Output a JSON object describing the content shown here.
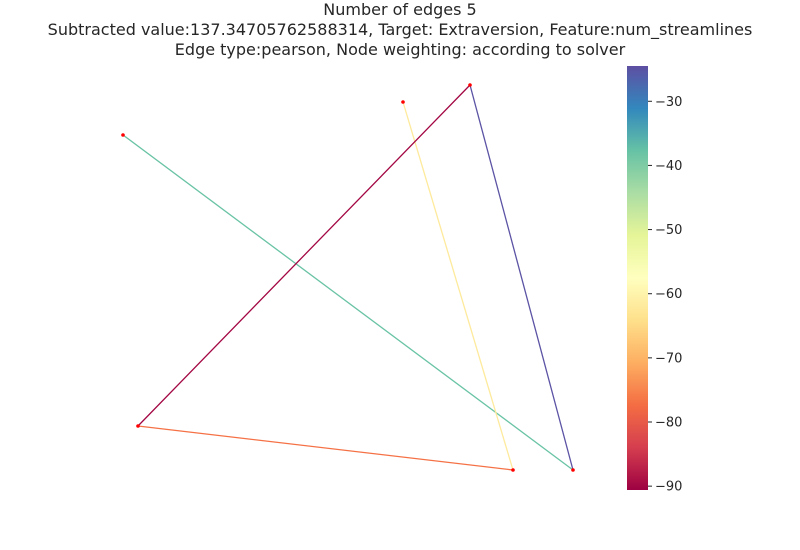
{
  "title": {
    "line1": "Number of edges 5",
    "line2": "Subtracted value:137.34705762588314, Target: Extraversion, Feature:num_streamlines",
    "line3": "Edge type:pearson, Node weighting: according to solver"
  },
  "colorbar": {
    "min": -90.6,
    "max": -24.5,
    "ticks": [
      -30,
      -40,
      -50,
      -60,
      -70,
      -80,
      -90
    ],
    "tick_labels": [
      "−30",
      "−40",
      "−50",
      "−60",
      "−70",
      "−80",
      "−90"
    ],
    "colormap": "Spectral",
    "stops": [
      {
        "t": 0.0,
        "color": "#9e0142"
      },
      {
        "t": 0.1,
        "color": "#d53e4f"
      },
      {
        "t": 0.2,
        "color": "#f46d43"
      },
      {
        "t": 0.3,
        "color": "#fdae61"
      },
      {
        "t": 0.4,
        "color": "#fee08b"
      },
      {
        "t": 0.5,
        "color": "#ffffbf"
      },
      {
        "t": 0.6,
        "color": "#e6f598"
      },
      {
        "t": 0.7,
        "color": "#abdda4"
      },
      {
        "t": 0.8,
        "color": "#66c2a5"
      },
      {
        "t": 0.9,
        "color": "#3288bd"
      },
      {
        "t": 1.0,
        "color": "#5e4fa2"
      }
    ]
  },
  "graph": {
    "node_color": "#ff0000",
    "nodes": [
      "n1",
      "n2",
      "n3",
      "n4",
      "n5",
      "n6"
    ],
    "edges": [
      {
        "source": "n4",
        "target": "n6",
        "value": -25
      },
      {
        "source": "n1",
        "target": "n6",
        "value": -38
      },
      {
        "source": "n3",
        "target": "n5",
        "value": -62
      },
      {
        "source": "n2",
        "target": "n5",
        "value": -77
      },
      {
        "source": "n2",
        "target": "n4",
        "value": -90
      }
    ]
  }
}
